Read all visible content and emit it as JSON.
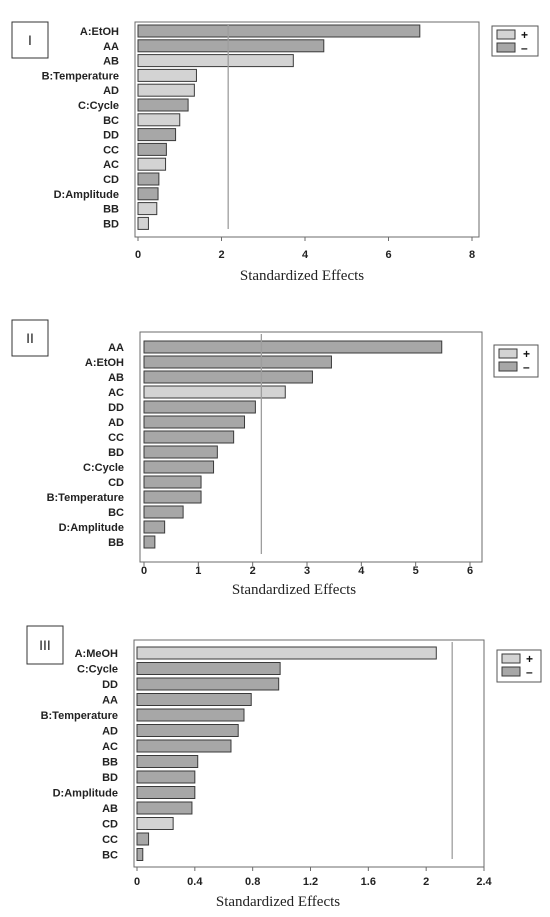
{
  "colors": {
    "positive": "#d3d3d3",
    "negative": "#a7a7a7",
    "bar_stroke": "#3a3a3a",
    "ref_line": "#9e9e9e",
    "frame": "#6b6b6b"
  },
  "chart_data": [
    {
      "type": "bar",
      "orientation": "horizontal",
      "panel_label": "I",
      "xlabel": "Standardized Effects",
      "xlim": [
        0,
        8
      ],
      "xticks": [
        "0",
        "2",
        "4",
        "6",
        "8"
      ],
      "reference_line": 2.16,
      "legend": {
        "position": "top-right",
        "entries": [
          {
            "label": "+",
            "sign": "positive"
          },
          {
            "label": "–",
            "sign": "negative"
          }
        ]
      },
      "categories": [
        "A:EtOH",
        "AA",
        "AB",
        "B:Temperature",
        "AD",
        "C:Cycle",
        "BC",
        "DD",
        "CC",
        "AC",
        "CD",
        "D:Amplitude",
        "BB",
        "BD"
      ],
      "values": [
        6.75,
        4.45,
        3.72,
        1.4,
        1.35,
        1.2,
        1.0,
        0.9,
        0.68,
        0.66,
        0.5,
        0.48,
        0.45,
        0.25
      ],
      "signs": [
        "negative",
        "negative",
        "positive",
        "positive",
        "positive",
        "negative",
        "positive",
        "negative",
        "negative",
        "positive",
        "negative",
        "negative",
        "positive",
        "positive"
      ]
    },
    {
      "type": "bar",
      "orientation": "horizontal",
      "panel_label": "II",
      "xlabel": "Standardized Effects",
      "xlim": [
        0,
        6
      ],
      "xticks": [
        "0",
        "1",
        "2",
        "3",
        "4",
        "5",
        "6"
      ],
      "reference_line": 2.16,
      "legend": {
        "position": "top-right",
        "entries": [
          {
            "label": "+",
            "sign": "positive"
          },
          {
            "label": "–",
            "sign": "negative"
          }
        ]
      },
      "categories": [
        "AA",
        "A:EtOH",
        "AB",
        "AC",
        "DD",
        "AD",
        "CC",
        "BD",
        "C:Cycle",
        "CD",
        "B:Temperature",
        "BC",
        "D:Amplitude",
        "BB"
      ],
      "values": [
        5.48,
        3.45,
        3.1,
        2.6,
        2.05,
        1.85,
        1.65,
        1.35,
        1.28,
        1.05,
        1.05,
        0.72,
        0.38,
        0.2
      ],
      "signs": [
        "negative",
        "negative",
        "negative",
        "positive",
        "negative",
        "negative",
        "negative",
        "negative",
        "negative",
        "negative",
        "negative",
        "negative",
        "negative",
        "negative"
      ]
    },
    {
      "type": "bar",
      "orientation": "horizontal",
      "panel_label": "III",
      "xlabel": "Standardized Effects",
      "xlim": [
        0,
        2.4
      ],
      "xticks": [
        "0",
        "0.4",
        "0.8",
        "1.2",
        "1.6",
        "2",
        "2.4"
      ],
      "reference_line": 2.18,
      "legend": {
        "position": "top-right",
        "entries": [
          {
            "label": "+",
            "sign": "positive"
          },
          {
            "label": "–",
            "sign": "negative"
          }
        ]
      },
      "categories": [
        "A:MeOH",
        "C:Cycle",
        "DD",
        "AA",
        "B:Temperature",
        "AD",
        "AC",
        "BB",
        "BD",
        "D:Amplitude",
        "AB",
        "CD",
        "CC",
        "BC"
      ],
      "values": [
        2.07,
        0.99,
        0.98,
        0.79,
        0.74,
        0.7,
        0.65,
        0.42,
        0.4,
        0.4,
        0.38,
        0.25,
        0.08,
        0.04
      ],
      "signs": [
        "positive",
        "negative",
        "negative",
        "negative",
        "negative",
        "negative",
        "negative",
        "negative",
        "negative",
        "negative",
        "negative",
        "positive",
        "negative",
        "negative"
      ]
    }
  ]
}
